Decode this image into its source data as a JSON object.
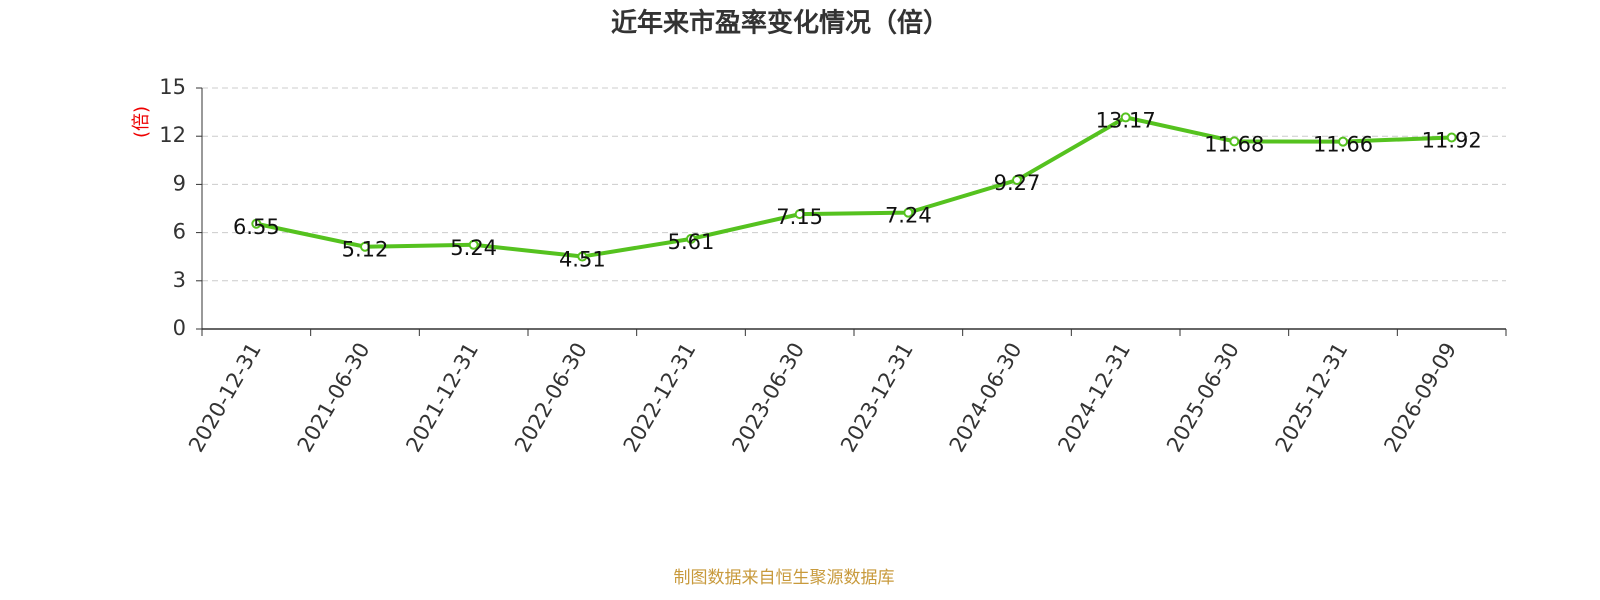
{
  "chart_data": {
    "type": "line",
    "title": "近年来市盈率变化情况（倍）",
    "y_label": "(倍)",
    "source": "制图数据来自恒生聚源数据库",
    "categories": [
      "2020-12-31",
      "2021-06-30",
      "2021-12-31",
      "2022-06-30",
      "2022-12-31",
      "2023-06-30",
      "2023-12-31",
      "2024-06-30",
      "2024-12-31",
      "2025-06-30",
      "2025-12-31",
      "2026-09-09"
    ],
    "series": [
      {
        "name": "市盈率",
        "color": "#55c21f",
        "values": [
          6.55,
          5.12,
          5.24,
          4.51,
          5.61,
          7.15,
          7.24,
          9.27,
          13.17,
          11.68,
          11.66,
          11.92
        ]
      }
    ],
    "ylim": [
      0,
      15
    ],
    "yticks": [
      0,
      3,
      6,
      9,
      12,
      15
    ],
    "grid": true
  }
}
